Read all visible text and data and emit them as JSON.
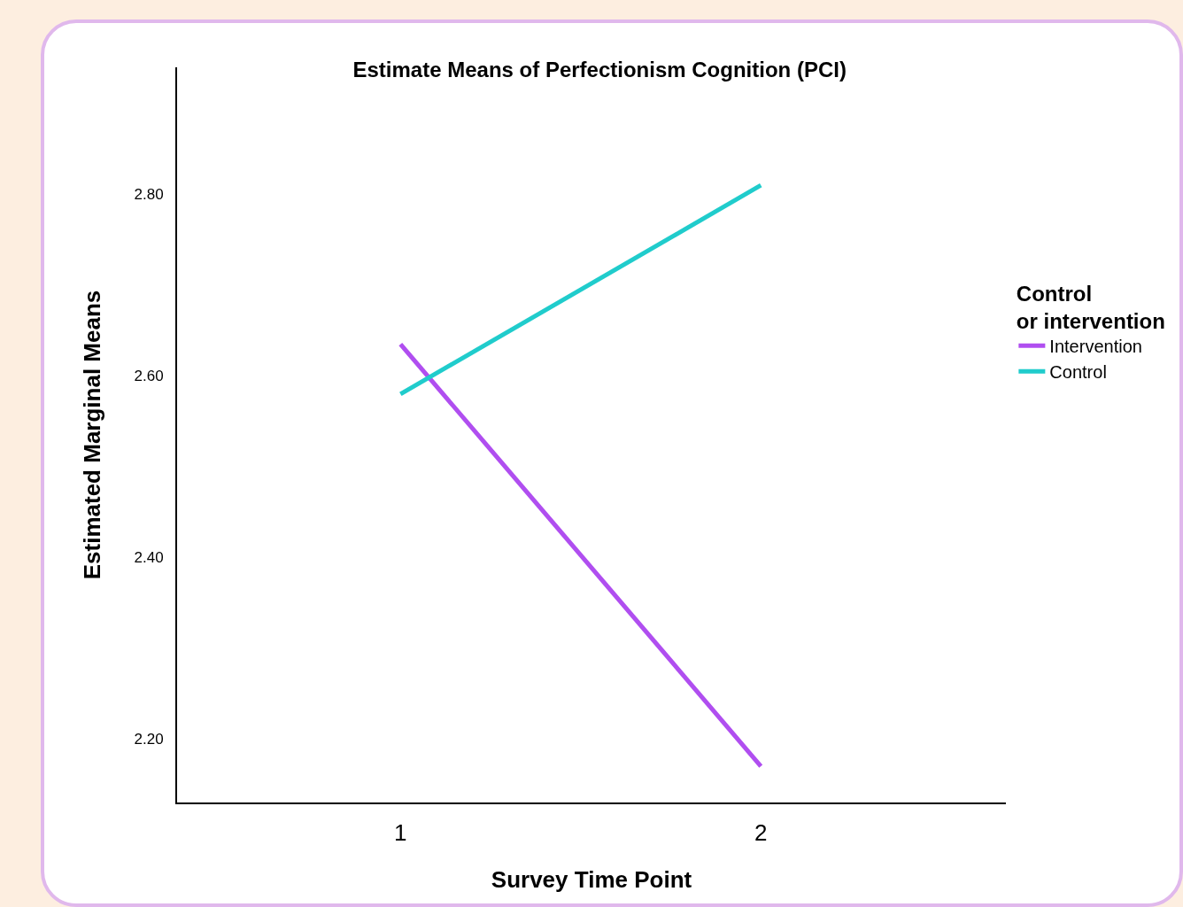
{
  "chart_data": {
    "type": "line",
    "title": "Estimate Means of Perfectionism Cognition (PCI)",
    "xlabel": "Survey Time Point",
    "ylabel": "Estimated Marginal Means",
    "legend_title": "Control or intervention",
    "categories": [
      "1",
      "2"
    ],
    "series": [
      {
        "name": "Intervention",
        "color": "#b04ef0",
        "values": [
          2.635,
          2.17
        ]
      },
      {
        "name": "Control",
        "color": "#20cccc",
        "values": [
          2.58,
          2.81
        ]
      }
    ],
    "ylim": [
      2.13,
      2.94
    ],
    "yticks": [
      {
        "value": 2.2,
        "label": "2.20"
      },
      {
        "value": 2.4,
        "label": "2.40"
      },
      {
        "value": 2.6,
        "label": "2.60"
      },
      {
        "value": 2.8,
        "label": "2.80"
      }
    ],
    "grid": false,
    "legend": "right",
    "marker": "none",
    "line_style": "solid"
  }
}
